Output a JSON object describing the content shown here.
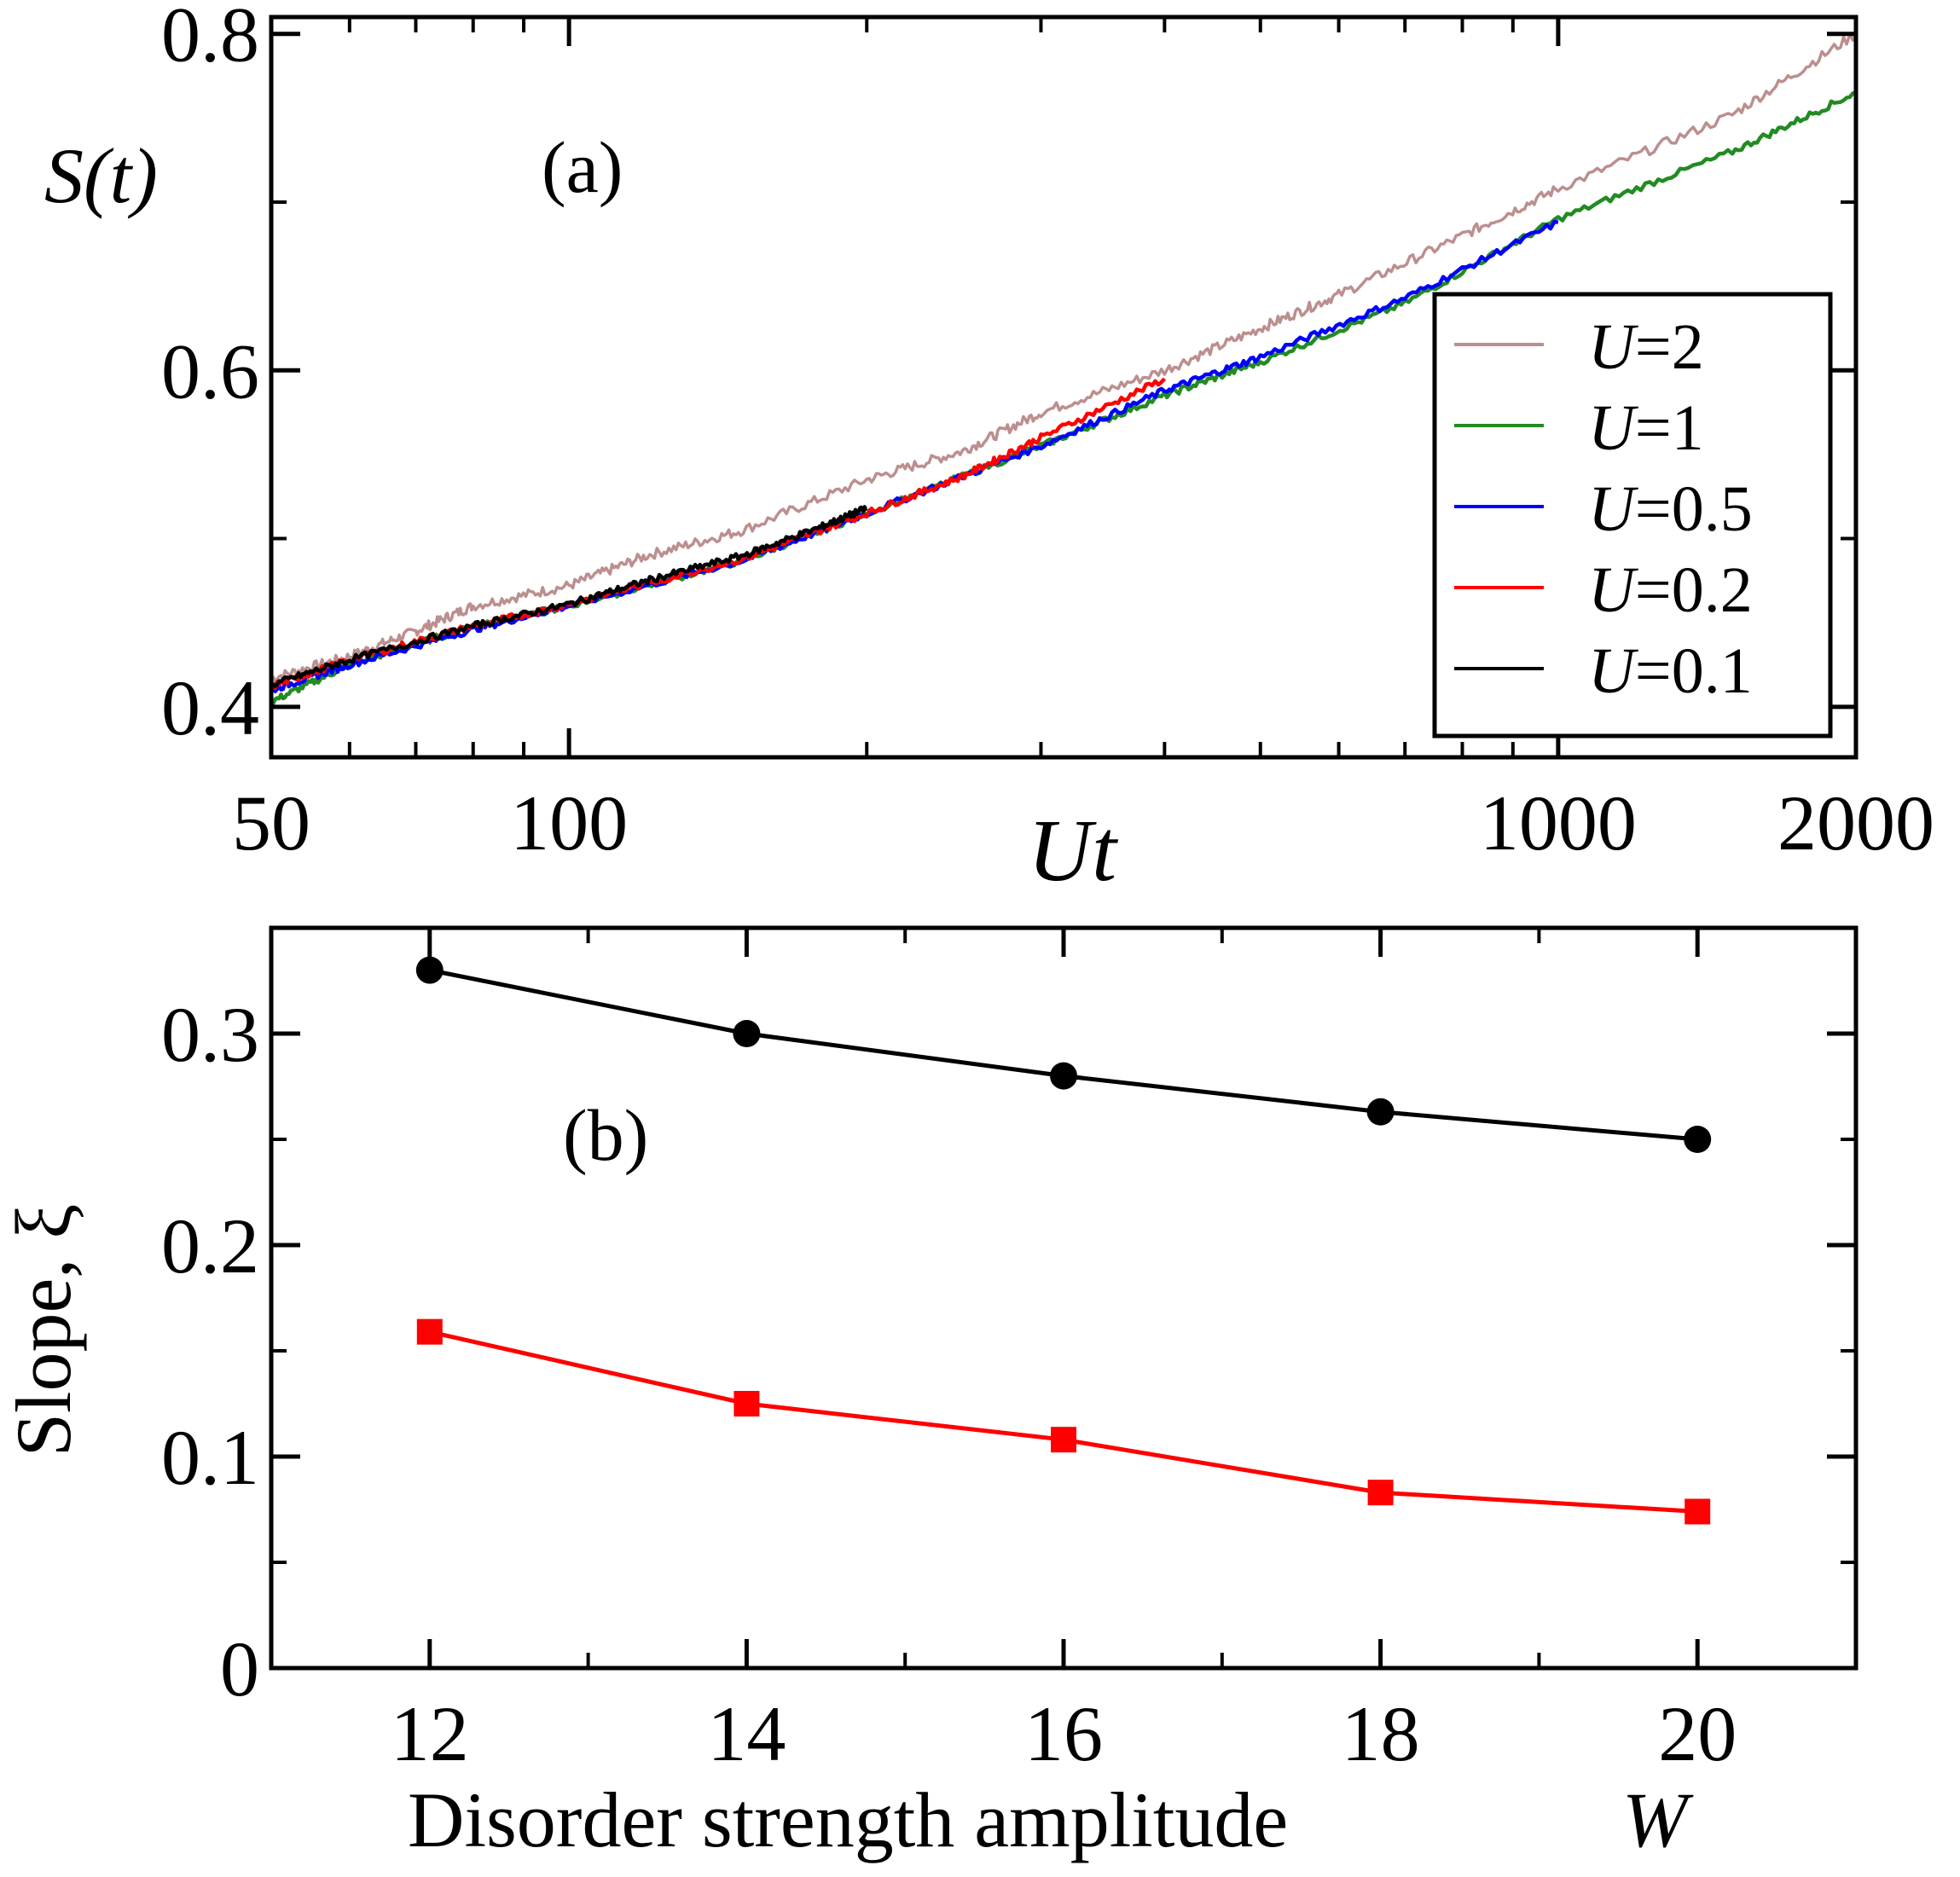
{
  "chart_data": [
    {
      "panel": "(a)",
      "type": "line",
      "xscale": "log",
      "xlim": [
        50,
        2000
      ],
      "ylim": [
        0.37,
        0.81
      ],
      "xlabel": "Ut",
      "ylabel": "S(t)",
      "xticks": [
        50,
        100,
        1000,
        2000
      ],
      "xtick_labels": [
        "50",
        "100",
        "1000",
        "2000"
      ],
      "yticks": [
        0.4,
        0.6,
        0.8
      ],
      "ytick_labels": [
        "0.4",
        "0.6",
        "0.8"
      ],
      "legend_position": "bottom-right",
      "series": [
        {
          "name": "U=2",
          "color": "#bc8f8f",
          "x": [
            50,
            60,
            70,
            80,
            100,
            120,
            150,
            200,
            250,
            300,
            400,
            500,
            600,
            800,
            1000,
            1500,
            2000
          ],
          "y": [
            0.417,
            0.43,
            0.445,
            0.46,
            0.472,
            0.49,
            0.505,
            0.535,
            0.552,
            0.575,
            0.6,
            0.625,
            0.645,
            0.68,
            0.708,
            0.752,
            0.8
          ]
        },
        {
          "name": "U=1",
          "color": "#228b22",
          "x": [
            50,
            60,
            80,
            100,
            150,
            200,
            300,
            400,
            500,
            700,
            1000,
            1500,
            2000
          ],
          "y": [
            0.403,
            0.425,
            0.448,
            0.46,
            0.487,
            0.515,
            0.555,
            0.585,
            0.605,
            0.64,
            0.69,
            0.73,
            0.765
          ]
        },
        {
          "name": "U=0.5",
          "color": "#0000ff",
          "x": [
            50,
            60,
            80,
            100,
            150,
            200,
            300,
            400,
            500,
            700,
            1000
          ],
          "y": [
            0.41,
            0.425,
            0.446,
            0.46,
            0.487,
            0.515,
            0.555,
            0.588,
            0.608,
            0.643,
            0.688
          ]
        },
        {
          "name": "U=0.2",
          "color": "#ff0000",
          "x": [
            50,
            60,
            80,
            100,
            150,
            200,
            250,
            300,
            400
          ],
          "y": [
            0.412,
            0.428,
            0.448,
            0.461,
            0.488,
            0.515,
            0.537,
            0.56,
            0.595
          ]
        },
        {
          "name": "U=0.1",
          "color": "#000000",
          "x": [
            50,
            60,
            80,
            100,
            120,
            150,
            180,
            200
          ],
          "y": [
            0.413,
            0.428,
            0.448,
            0.461,
            0.475,
            0.49,
            0.507,
            0.518
          ]
        }
      ]
    },
    {
      "panel": "(b)",
      "type": "line",
      "xlim": [
        11,
        21
      ],
      "ylim": [
        0,
        0.35
      ],
      "xlabel": "Disorder strength amplitude",
      "xlabel_symbol": "W",
      "ylabel": "Slope, ξ",
      "xticks": [
        12,
        14,
        16,
        18,
        20
      ],
      "xtick_labels": [
        "12",
        "14",
        "16",
        "18",
        "20"
      ],
      "yticks": [
        0,
        0.1,
        0.2,
        0.3
      ],
      "ytick_labels": [
        "0",
        "0.1",
        "0.2",
        "0.3"
      ],
      "series": [
        {
          "name": "black-circles",
          "color": "#000000",
          "marker": "circle",
          "x": [
            12,
            14,
            16,
            18,
            20
          ],
          "y": [
            0.33,
            0.3,
            0.28,
            0.263,
            0.25
          ]
        },
        {
          "name": "red-squares",
          "color": "#ff0000",
          "marker": "square",
          "x": [
            12,
            14,
            16,
            18,
            20
          ],
          "y": [
            0.159,
            0.125,
            0.108,
            0.083,
            0.074
          ]
        }
      ]
    }
  ]
}
